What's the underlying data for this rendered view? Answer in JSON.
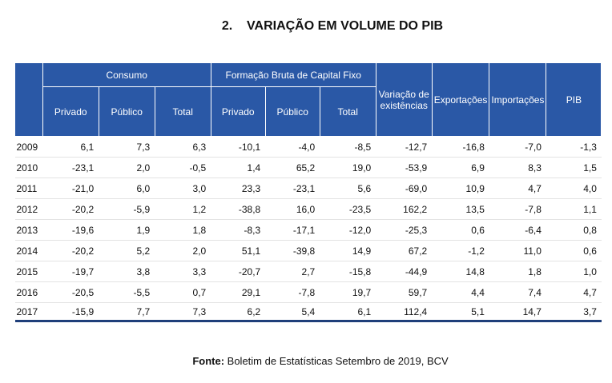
{
  "header": {
    "title": "2.    VARIAÇÃO EM VOLUME DO PIB"
  },
  "table": {
    "groups": [
      "Consumo",
      "Formação Bruta de Capital Fixo"
    ],
    "subcolumns": [
      "Privado",
      "Público",
      "Total",
      "Privado",
      "Público",
      "Total"
    ],
    "columns": [
      "Variação de existências",
      "Exportações",
      "Importações",
      "PIB"
    ],
    "rows": [
      [
        "2009",
        "6,1",
        "7,3",
        "6,3",
        "-10,1",
        "-4,0",
        "-8,5",
        "-12,7",
        "-16,8",
        "-7,0",
        "-1,3"
      ],
      [
        "2010",
        "-23,1",
        "2,0",
        "-0,5",
        "1,4",
        "65,2",
        "19,0",
        "-53,9",
        "6,9",
        "8,3",
        "1,5"
      ],
      [
        "2011",
        "-21,0",
        "6,0",
        "3,0",
        "23,3",
        "-23,1",
        "5,6",
        "-69,0",
        "10,9",
        "4,7",
        "4,0"
      ],
      [
        "2012",
        "-20,2",
        "-5,9",
        "1,2",
        "-38,8",
        "16,0",
        "-23,5",
        "162,2",
        "13,5",
        "-7,8",
        "1,1"
      ],
      [
        "2013",
        "-19,6",
        "1,9",
        "1,8",
        "-8,3",
        "-17,1",
        "-12,0",
        "-25,3",
        "0,6",
        "-6,4",
        "0,8"
      ],
      [
        "2014",
        "-20,2",
        "5,2",
        "2,0",
        "51,1",
        "-39,8",
        "14,9",
        "67,2",
        "-1,2",
        "11,0",
        "0,6"
      ],
      [
        "2015",
        "-19,7",
        "3,8",
        "3,3",
        "-20,7",
        "2,7",
        "-15,8",
        "-44,9",
        "14,8",
        "1,8",
        "1,0"
      ],
      [
        "2016",
        "-20,5",
        "-5,5",
        "0,7",
        "29,1",
        "-7,8",
        "19,7",
        "59,7",
        "4,4",
        "7,4",
        "4,7"
      ],
      [
        "2017",
        "-15,9",
        "7,7",
        "7,3",
        "6,2",
        "5,4",
        "6,1",
        "112,4",
        "5,1",
        "14,7",
        "3,7"
      ]
    ]
  },
  "footer": {
    "label": "Fonte:",
    "text": "Boletim de Estatísticas Setembro de 2019, BCV"
  }
}
